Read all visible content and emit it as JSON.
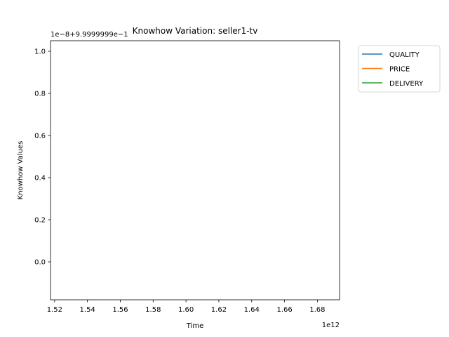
{
  "chart_data": {
    "type": "line",
    "title": "Knowhow Variation: seller1-tv",
    "xlabel": "Time",
    "ylabel": "Knowhow Values",
    "x_offset_label": "1e12",
    "y_offset_label": "1e−8+9.9999999e−1",
    "x_ticks": [
      1.52,
      1.54,
      1.56,
      1.58,
      1.6,
      1.62,
      1.64,
      1.66,
      1.68
    ],
    "x_tick_labels": [
      "1.52",
      "1.54",
      "1.56",
      "1.58",
      "1.60",
      "1.62",
      "1.64",
      "1.66",
      "1.68"
    ],
    "y_ticks": [
      0.0,
      0.2,
      0.4,
      0.6,
      0.8,
      1.0
    ],
    "y_tick_labels": [
      "0.0",
      "0.2",
      "0.4",
      "0.6",
      "0.8",
      "1.0"
    ],
    "xlim": [
      1.5175,
      1.6935
    ],
    "ylim": [
      -0.18,
      1.05
    ],
    "grid": false,
    "legend_position": "outside-top-right",
    "series": [
      {
        "name": "QUALITY",
        "color": "#1f77b4",
        "x": [],
        "y": []
      },
      {
        "name": "PRICE",
        "color": "#ff7f0e",
        "x": [],
        "y": []
      },
      {
        "name": "DELIVERY",
        "color": "#2ca02c",
        "x": [],
        "y": []
      }
    ]
  }
}
